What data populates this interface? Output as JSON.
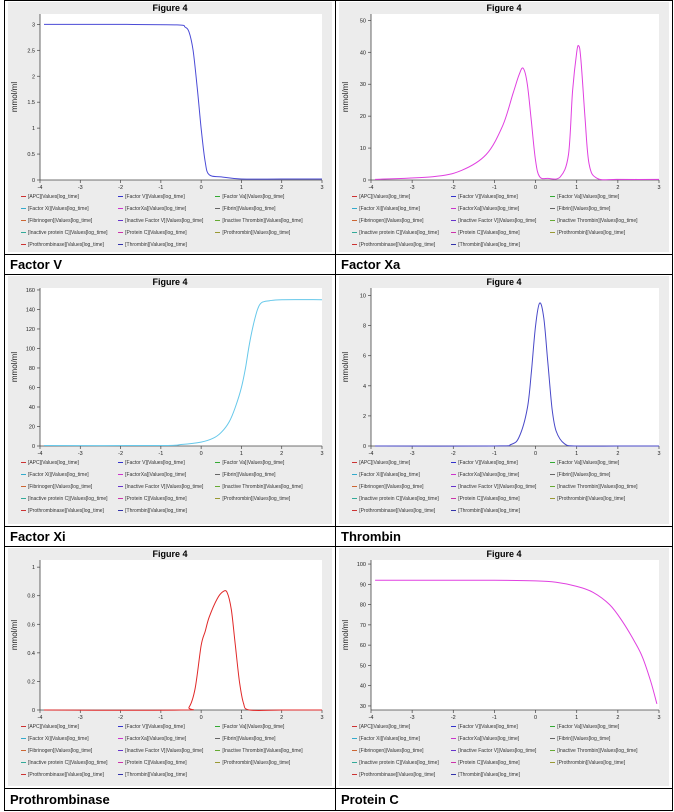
{
  "figure_title": "Figure 4",
  "ylabel": "mmol/ml",
  "legend_entries": [
    {
      "text": "[APC]|Values[log_time]",
      "color": "#cc3333"
    },
    {
      "text": "[Factor V]|Values[log_time]",
      "color": "#3333cc"
    },
    {
      "text": "[Factor Va]|Values[log_time]",
      "color": "#33aa33"
    },
    {
      "text": "[Factor Xi]|Values[log_time]",
      "color": "#33aacc"
    },
    {
      "text": "[FactorXa]|Values[log_time]",
      "color": "#cc33cc"
    },
    {
      "text": "[Fibrin]|Values[log_time]",
      "color": "#666666"
    },
    {
      "text": "[Fibrinogen]|Values[log_time]",
      "color": "#cc6633"
    },
    {
      "text": "[Inactive Factor V]|Values[log_time]",
      "color": "#6633cc"
    },
    {
      "text": "[Inactive Thrombin]|Values[log_time]",
      "color": "#66aa33"
    },
    {
      "text": "[Inactive protein C]|Values[log_time]",
      "color": "#33aa99"
    },
    {
      "text": "[Protein C]|Values[log_time]",
      "color": "#cc33aa"
    },
    {
      "text": "[Prothrombin]|Values[log_time]",
      "color": "#999933"
    },
    {
      "text": "[Prothrombinase]|Values[log_time]",
      "color": "#cc3333"
    },
    {
      "text": "[Thrombin]|Values[log_time]",
      "color": "#3333aa"
    }
  ],
  "panels": [
    {
      "label": "Factor V",
      "color": "#4b4bd6"
    },
    {
      "label": "Factor Xa",
      "color": "#e040e0"
    },
    {
      "label": "Factor Xi",
      "color": "#66c8ea"
    },
    {
      "label": "Thrombin",
      "color": "#4848c8"
    },
    {
      "label": "Prothrombinase",
      "color": "#e02828"
    },
    {
      "label": "Protein C",
      "color": "#e040e0"
    }
  ],
  "chart_data": [
    {
      "type": "line",
      "title": "Figure 4",
      "ylabel": "mmol/ml",
      "xlim": [
        -4,
        3
      ],
      "ylim": [
        0,
        3.2
      ],
      "xticks": [
        -4,
        -3,
        -2,
        -1,
        0,
        1,
        2,
        3
      ],
      "yticks": [
        0,
        0.5,
        1,
        1.5,
        2,
        2.5,
        3
      ],
      "series": [
        {
          "name": "[Factor V]|Values[log_time]",
          "x": [
            -3.9,
            -2,
            -0.6,
            -0.4,
            -0.3,
            -0.2,
            -0.1,
            0,
            0.1,
            0.2,
            0.5,
            1,
            2,
            3
          ],
          "y": [
            3.0,
            3.0,
            2.99,
            2.95,
            2.85,
            2.5,
            1.8,
            1.0,
            0.35,
            0.1,
            0.06,
            0.02,
            0.02,
            0.02
          ]
        }
      ]
    },
    {
      "type": "line",
      "title": "Figure 4",
      "ylabel": "mmol/ml",
      "xlim": [
        -4,
        3
      ],
      "ylim": [
        0,
        52
      ],
      "xticks": [
        -4,
        -3,
        -2,
        -1,
        0,
        1,
        2,
        3
      ],
      "yticks": [
        0,
        10,
        20,
        30,
        40,
        50
      ],
      "series": [
        {
          "name": "[FactorXa]|Values[log_time]",
          "x": [
            -3.9,
            -2.5,
            -1.8,
            -1.2,
            -0.8,
            -0.55,
            -0.4,
            -0.3,
            -0.2,
            -0.1,
            0,
            0.1,
            0.3,
            0.6,
            0.8,
            0.9,
            1.0,
            1.05,
            1.1,
            1.2,
            1.3,
            1.5,
            2,
            3
          ],
          "y": [
            0.2,
            1,
            3,
            8,
            17,
            27,
            33,
            35,
            30,
            18,
            6,
            1,
            0.5,
            1,
            8,
            28,
            40,
            42,
            38,
            20,
            5,
            0.5,
            0.2,
            0.2
          ]
        }
      ]
    },
    {
      "type": "line",
      "title": "Figure 4",
      "ylabel": "mmol/ml",
      "xlim": [
        -4,
        3
      ],
      "ylim": [
        0,
        162
      ],
      "xticks": [
        -4,
        -3,
        -2,
        -1,
        0,
        1,
        2,
        3
      ],
      "yticks": [
        0,
        20,
        40,
        60,
        80,
        100,
        120,
        140,
        160
      ],
      "series": [
        {
          "name": "[Factor Xi]|Values[log_time]",
          "x": [
            -3.9,
            -1,
            -0.5,
            0,
            0.3,
            0.5,
            0.7,
            0.85,
            1.0,
            1.1,
            1.2,
            1.3,
            1.4,
            1.5,
            1.7,
            2,
            3
          ],
          "y": [
            0.5,
            0.5,
            1.5,
            4,
            8,
            14,
            25,
            40,
            60,
            80,
            105,
            125,
            140,
            147,
            149,
            150,
            150
          ]
        }
      ]
    },
    {
      "type": "line",
      "title": "Figure 4",
      "ylabel": "mmol/ml",
      "xlim": [
        -4,
        3
      ],
      "ylim": [
        0,
        10.5
      ],
      "xticks": [
        -4,
        -3,
        -2,
        -1,
        0,
        1,
        2,
        3
      ],
      "yticks": [
        0,
        2,
        4,
        6,
        8,
        10
      ],
      "series": [
        {
          "name": "[Thrombin]|Values[log_time]",
          "x": [
            -3.9,
            -1,
            -0.6,
            -0.4,
            -0.2,
            -0.1,
            0,
            0.1,
            0.2,
            0.3,
            0.4,
            0.5,
            0.7,
            1,
            2,
            3
          ],
          "y": [
            0,
            0,
            0.1,
            0.6,
            2.5,
            5,
            8,
            9.5,
            8.5,
            5.5,
            2.5,
            1,
            0.15,
            0,
            0,
            0
          ]
        }
      ]
    },
    {
      "type": "line",
      "title": "Figure 4",
      "ylabel": "mmol/ml",
      "xlim": [
        -4,
        3
      ],
      "ylim": [
        0,
        1.05
      ],
      "xticks": [
        -4,
        -3,
        -2,
        -1,
        0,
        1,
        2,
        3
      ],
      "yticks": [
        0,
        0.2,
        0.4,
        0.6,
        0.8,
        1
      ],
      "series": [
        {
          "name": "[Prothrombinase]|Values[log_time]",
          "x": [
            -3.9,
            -0.5,
            -0.3,
            -0.15,
            0,
            0.1,
            0.2,
            0.4,
            0.55,
            0.65,
            0.75,
            0.85,
            0.95,
            1.05,
            1.2,
            2,
            3
          ],
          "y": [
            0,
            0,
            0.02,
            0.15,
            0.45,
            0.55,
            0.65,
            0.78,
            0.83,
            0.82,
            0.7,
            0.45,
            0.2,
            0.05,
            0,
            0,
            0
          ]
        }
      ]
    },
    {
      "type": "line",
      "title": "Figure 4",
      "ylabel": "mmol/ml",
      "xlim": [
        -4,
        3
      ],
      "ylim": [
        28,
        102
      ],
      "xticks": [
        -4,
        -3,
        -2,
        -1,
        0,
        1,
        2,
        3
      ],
      "yticks": [
        30,
        40,
        50,
        60,
        70,
        80,
        90,
        100
      ],
      "series": [
        {
          "name": "[Protein C]|Values[log_time]",
          "x": [
            -3.9,
            -1,
            0,
            0.5,
            1,
            1.4,
            1.8,
            2.1,
            2.4,
            2.6,
            2.8,
            2.95
          ],
          "y": [
            92,
            92,
            91.7,
            91,
            89,
            86,
            80,
            72,
            62,
            54,
            42,
            31
          ]
        }
      ]
    }
  ]
}
